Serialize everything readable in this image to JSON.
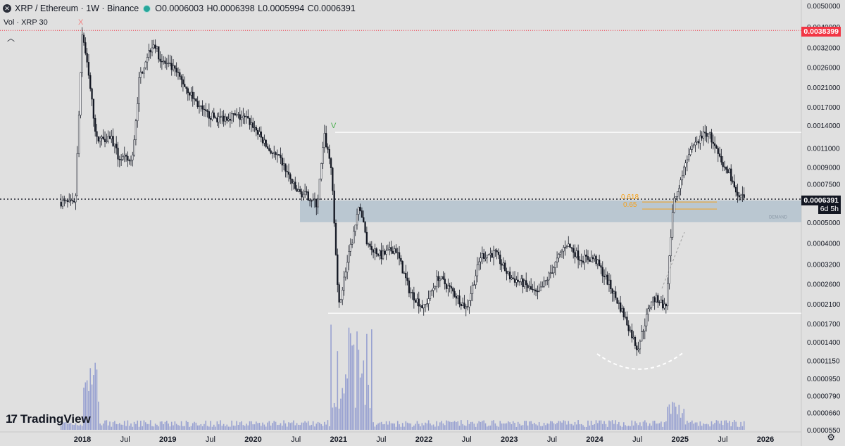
{
  "header": {
    "title": "XRP / Ethereum · 1W · Binance",
    "ohlc": {
      "o": "O0.0006003",
      "h": "H0.0006398",
      "l": "L0.0005994",
      "c": "C0.0006391"
    },
    "vol_label": "Vol · XRP 30"
  },
  "price_tags": {
    "ath_line": "0.0038399",
    "last_price": "0.0006391",
    "countdown": "6d 5h"
  },
  "annotations": {
    "top_marker": "X",
    "secondary_marker": "V",
    "fib_618": "0.618",
    "fib_65": "0.65",
    "zone_label": "DEMAND"
  },
  "brand": "TradingView",
  "colors": {
    "background": "#e0e0e0",
    "candle": "#131722",
    "zone": "#aebfcc",
    "ath_line": "#f23645",
    "fib": "#f7a21b",
    "marker_x": "#f08080",
    "marker_v": "#4caf50",
    "volume": "#7986cb"
  },
  "chart_data": {
    "type": "candlestick",
    "scale": "log",
    "x_ticks": [
      "2018",
      "Jul",
      "2019",
      "Jul",
      "2020",
      "Jul",
      "2021",
      "Jul",
      "2022",
      "Jul",
      "2023",
      "Jul",
      "2024",
      "Jul",
      "2025",
      "Jul",
      "2026"
    ],
    "y_ticks": [
      "0.0050000",
      "0.0040000",
      "0.0032000",
      "0.0026000",
      "0.0021000",
      "0.0017000",
      "0.0014000",
      "0.0011000",
      "0.0009000",
      "0.0007500",
      "0.0006391",
      "0.0005000",
      "0.0004000",
      "0.0003200",
      "0.0002600",
      "0.0002100",
      "0.0001700",
      "0.0001400",
      "0.0001150",
      "0.0000950",
      "0.0000790",
      "0.0000660",
      "0.0000550"
    ],
    "ylim": [
      5.5e-05,
      0.005
    ],
    "path": [
      [
        "2017-10",
        0.00062
      ],
      [
        "2017-12",
        0.0006
      ],
      [
        "2018-01",
        0.0038
      ],
      [
        "2018-02",
        0.0022
      ],
      [
        "2018-03",
        0.0012
      ],
      [
        "2018-05",
        0.00125
      ],
      [
        "2018-06",
        0.001
      ],
      [
        "2018-08",
        0.00095
      ],
      [
        "2018-09",
        0.0023
      ],
      [
        "2018-10",
        0.0029
      ],
      [
        "2018-11",
        0.0034
      ],
      [
        "2018-12",
        0.0028
      ],
      [
        "2019-02",
        0.0025
      ],
      [
        "2019-04",
        0.002
      ],
      [
        "2019-06",
        0.0016
      ],
      [
        "2019-08",
        0.0015
      ],
      [
        "2019-10",
        0.00155
      ],
      [
        "2019-12",
        0.0015
      ],
      [
        "2020-01",
        0.0014
      ],
      [
        "2020-03",
        0.0011
      ],
      [
        "2020-05",
        0.00095
      ],
      [
        "2020-07",
        0.0007
      ],
      [
        "2020-09",
        0.00065
      ],
      [
        "2020-10",
        0.0006
      ],
      [
        "2020-11",
        0.00125
      ],
      [
        "2020-12",
        0.0009
      ],
      [
        "2021-01",
        0.0002
      ],
      [
        "2021-02",
        0.0003
      ],
      [
        "2021-04",
        0.0006
      ],
      [
        "2021-05",
        0.0004
      ],
      [
        "2021-07",
        0.00035
      ],
      [
        "2021-09",
        0.00038
      ],
      [
        "2021-11",
        0.00024
      ],
      [
        "2022-01",
        0.0002
      ],
      [
        "2022-03",
        0.00028
      ],
      [
        "2022-05",
        0.00024
      ],
      [
        "2022-07",
        0.0002
      ],
      [
        "2022-09",
        0.00035
      ],
      [
        "2022-11",
        0.00036
      ],
      [
        "2023-01",
        0.00028
      ],
      [
        "2023-03",
        0.00026
      ],
      [
        "2023-05",
        0.00023
      ],
      [
        "2023-07",
        0.0003
      ],
      [
        "2023-09",
        0.0004
      ],
      [
        "2023-11",
        0.00034
      ],
      [
        "2024-01",
        0.00034
      ],
      [
        "2024-03",
        0.00026
      ],
      [
        "2024-05",
        0.00019
      ],
      [
        "2024-07",
        0.00013
      ],
      [
        "2024-09",
        0.00022
      ],
      [
        "2024-10",
        0.00022
      ],
      [
        "2024-11",
        0.0002
      ],
      [
        "2024-12",
        0.0006
      ],
      [
        "2025-02",
        0.001
      ],
      [
        "2025-04",
        0.00125
      ],
      [
        "2025-05",
        0.0013
      ],
      [
        "2025-07",
        0.0009
      ],
      [
        "2025-08",
        0.00085
      ],
      [
        "2025-09",
        0.00065
      ],
      [
        "2025-10",
        0.00064
      ]
    ],
    "levels": {
      "ath": 0.0038399,
      "resistance": 0.0013,
      "support": 0.00019,
      "fib_618": 0.00062,
      "fib_65": 0.000575,
      "last": 0.0006391,
      "zone": [
        0.0005,
        0.00063
      ]
    }
  }
}
